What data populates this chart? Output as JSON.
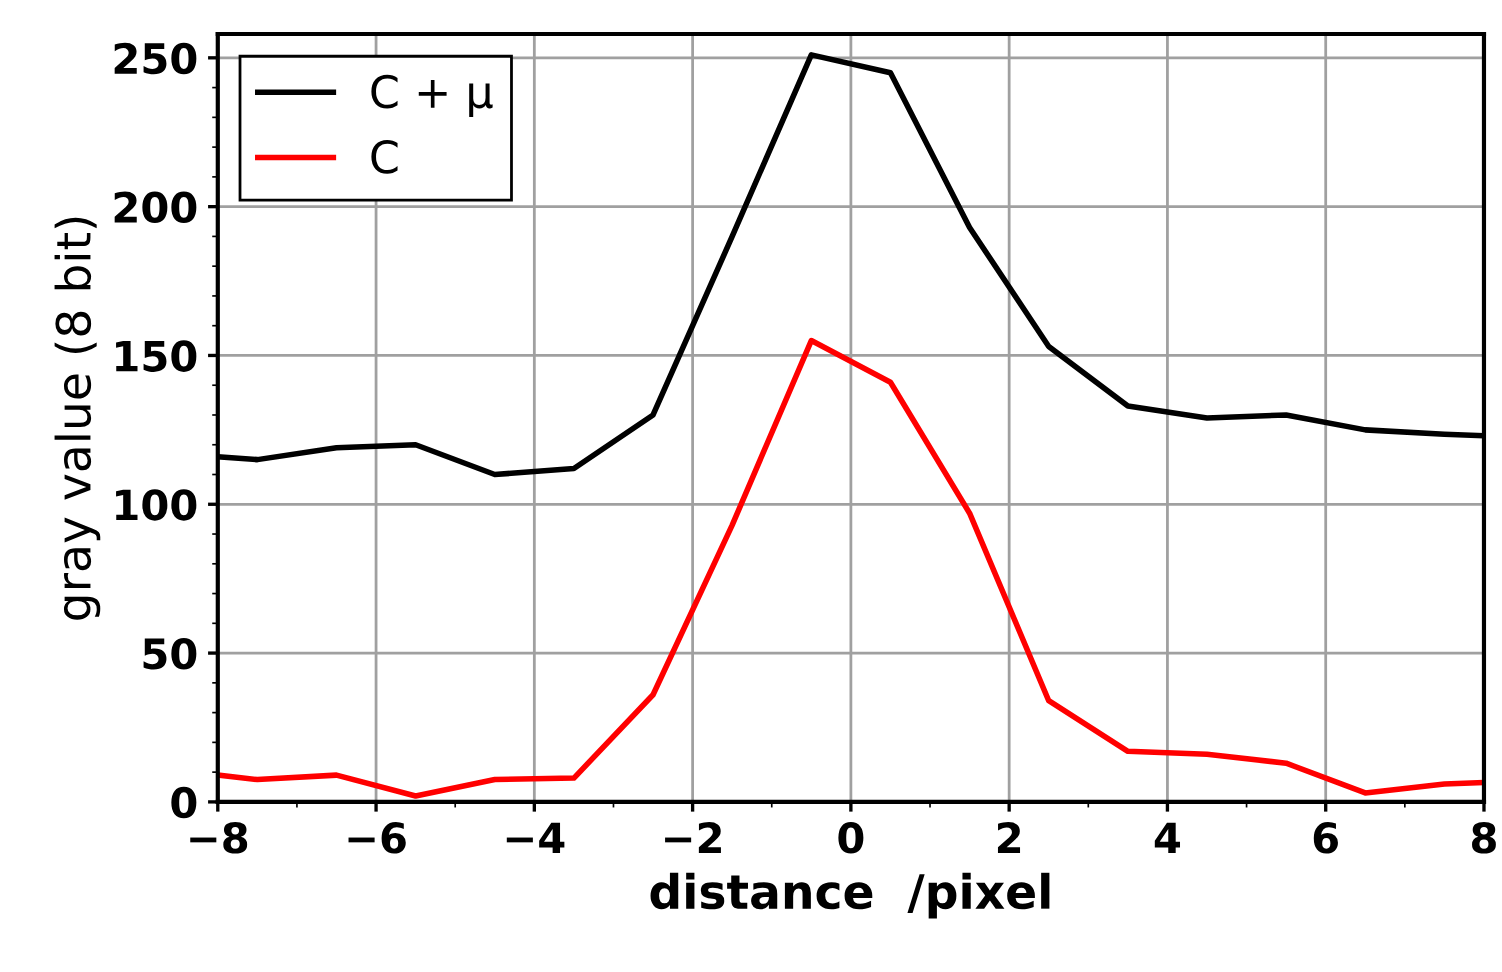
{
  "chart_data": {
    "type": "line",
    "xlabel": "distance  /pixel",
    "ylabel": "gray value (8 bit)",
    "x": [
      -8,
      -7.5,
      -6.5,
      -5.5,
      -4.5,
      -3.5,
      -2.5,
      -1.5,
      -0.5,
      0.5,
      1.5,
      2.5,
      3.5,
      4.5,
      5.5,
      6.5,
      7.5,
      8
    ],
    "series": [
      {
        "name": "C + μ",
        "color": "#000000",
        "values": [
          116,
          115,
          119,
          120,
          110,
          112,
          130,
          190,
          251,
          245,
          193,
          153,
          133,
          129,
          130,
          125,
          123.5,
          123
        ]
      },
      {
        "name": "C",
        "color": "#ff0000",
        "values": [
          9,
          7.5,
          9,
          2,
          7.5,
          8,
          36,
          93,
          155,
          141,
          97,
          34,
          17,
          16,
          13,
          3,
          6,
          6.5
        ]
      }
    ],
    "xlim": [
      -8,
      8
    ],
    "ylim": [
      0,
      258
    ],
    "xticks": [
      {
        "value": -8,
        "label": "−8"
      },
      {
        "value": -6,
        "label": "−6"
      },
      {
        "value": -4,
        "label": "−4"
      },
      {
        "value": -2,
        "label": "−2"
      },
      0,
      2,
      4,
      6,
      8
    ],
    "yticks": [
      0,
      50,
      100,
      150,
      200,
      250
    ],
    "grid": true,
    "legend": "top left",
    "marker": "none",
    "line_style": "solid"
  }
}
